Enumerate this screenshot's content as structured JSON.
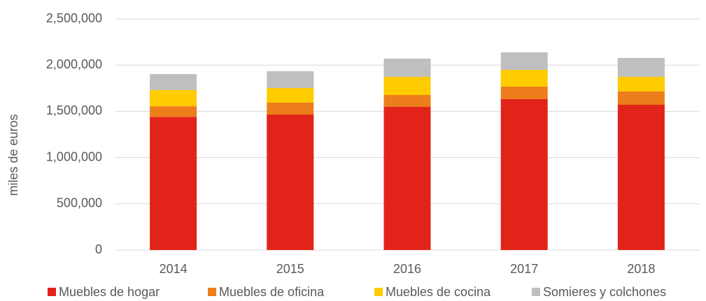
{
  "chart_data": {
    "type": "stacked_bar",
    "y_label": "miles de euros",
    "categories": [
      "2014",
      "2015",
      "2016",
      "2017",
      "2018"
    ],
    "series": [
      {
        "name": "Muebles de hogar",
        "color": "#e2231a",
        "values": [
          1440000,
          1465000,
          1548000,
          1632000,
          1571000
        ]
      },
      {
        "name": "Muebles de oficina",
        "color": "#ee7d1b",
        "values": [
          115000,
          129000,
          129000,
          135000,
          144000
        ]
      },
      {
        "name": "Muebles de cocina",
        "color": "#ffcc00",
        "values": [
          175000,
          158000,
          196000,
          182000,
          158000
        ]
      },
      {
        "name": "Somieres y colchones",
        "color": "#bfbfbf",
        "values": [
          173000,
          182000,
          197000,
          189000,
          204000
        ]
      }
    ],
    "ylim": [
      0,
      2500000
    ],
    "yticks": [
      0,
      {
        "value": 500000,
        "label": "500,000"
      },
      {
        "value": 1000000,
        "label": "1,000,000"
      },
      {
        "value": 1500000,
        "label": "1,500,000"
      },
      {
        "value": 2000000,
        "label": "2,000,000"
      },
      {
        "value": 2500000,
        "label": "2,500,000"
      }
    ],
    "grid": true,
    "legend": "bottom"
  }
}
